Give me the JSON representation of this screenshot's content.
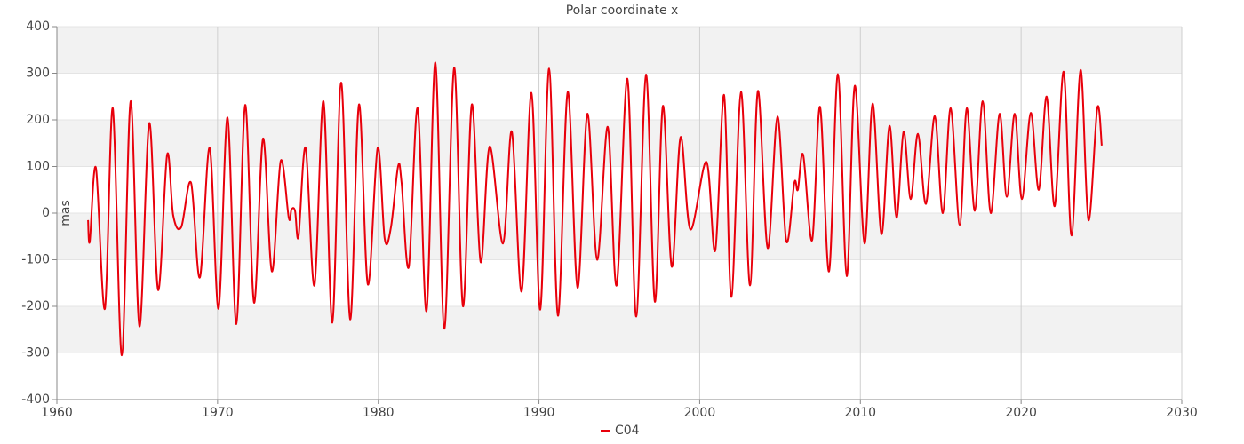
{
  "chart_data": {
    "type": "line",
    "title": "Polar coordinate x",
    "y_label": "mas",
    "x": [
      1961.94,
      1962.05,
      1962.43,
      1962.99,
      1963.48,
      1964.04,
      1964.59,
      1965.14,
      1965.75,
      1966.3,
      1966.86,
      1967.24,
      1967.74,
      1968.35,
      1968.9,
      1969.51,
      1970.06,
      1970.62,
      1971.17,
      1971.72,
      1972.27,
      1972.83,
      1973.38,
      1973.93,
      1974.43,
      1974.6,
      1974.82,
      1975.04,
      1975.48,
      1976.03,
      1976.59,
      1977.14,
      1977.69,
      1978.25,
      1978.8,
      1979.35,
      1979.96,
      1980.4,
      1980.79,
      1981.23,
      1981.45,
      1981.9,
      1982.45,
      1983.0,
      1983.55,
      1984.11,
      1984.72,
      1985.27,
      1985.82,
      1986.37,
      1986.93,
      1987.76,
      1988.31,
      1988.92,
      1989.53,
      1990.08,
      1990.63,
      1991.18,
      1991.79,
      1992.4,
      1993.01,
      1993.62,
      1994.28,
      1994.83,
      1995.5,
      1996.05,
      1996.66,
      1997.21,
      1997.71,
      1998.26,
      1998.81,
      1999.42,
      2000.42,
      2000.97,
      2001.52,
      2001.97,
      2002.57,
      2003.13,
      2003.62,
      2004.23,
      2004.84,
      2005.39,
      2005.89,
      2006.11,
      2006.44,
      2007.0,
      2007.49,
      2008.05,
      2008.6,
      2009.15,
      2009.65,
      2010.26,
      2010.76,
      2011.31,
      2011.81,
      2012.25,
      2012.69,
      2013.13,
      2013.58,
      2014.08,
      2014.63,
      2015.13,
      2015.62,
      2016.18,
      2016.62,
      2017.12,
      2017.61,
      2018.11,
      2018.66,
      2019.11,
      2019.6,
      2020.05,
      2020.6,
      2021.1,
      2021.59,
      2022.09,
      2022.65,
      2023.14,
      2023.7,
      2024.19,
      2024.74,
      2025.02
    ],
    "series": [
      {
        "name": "C04",
        "color": "#e8000b",
        "values": [
          -15,
          -60,
          97,
          -205,
          225,
          -305,
          240,
          -243,
          193,
          -165,
          125,
          -5,
          -30,
          65,
          -138,
          140,
          -205,
          205,
          -238,
          232,
          -192,
          160,
          -125,
          112,
          -10,
          8,
          5,
          -50,
          140,
          -155,
          240,
          -235,
          280,
          -228,
          233,
          -153,
          140,
          -55,
          -30,
          100,
          65,
          -115,
          225,
          -210,
          323,
          -248,
          312,
          -200,
          233,
          -105,
          143,
          -65,
          175,
          -168,
          258,
          -207,
          310,
          -220,
          260,
          -160,
          213,
          -100,
          185,
          -155,
          288,
          -222,
          297,
          -190,
          230,
          -115,
          163,
          -35,
          110,
          -80,
          253,
          -180,
          260,
          -155,
          262,
          -75,
          207,
          -60,
          65,
          50,
          125,
          -58,
          228,
          -125,
          298,
          -135,
          273,
          -65,
          235,
          -45,
          187,
          -10,
          175,
          30,
          170,
          20,
          208,
          0,
          225,
          -25,
          225,
          5,
          240,
          0,
          213,
          35,
          213,
          30,
          215,
          50,
          250,
          15,
          303,
          -48,
          307,
          -15,
          225,
          145
        ]
      }
    ],
    "xlim": [
      1960,
      2030
    ],
    "xticks": [
      1960,
      1970,
      1980,
      1990,
      2000,
      2010,
      2020,
      2030
    ],
    "ylim": [
      -400,
      400
    ],
    "yticks": [
      -400,
      -300,
      -200,
      -100,
      0,
      100,
      200,
      300,
      400
    ],
    "grid": true,
    "legend": "bottom"
  }
}
